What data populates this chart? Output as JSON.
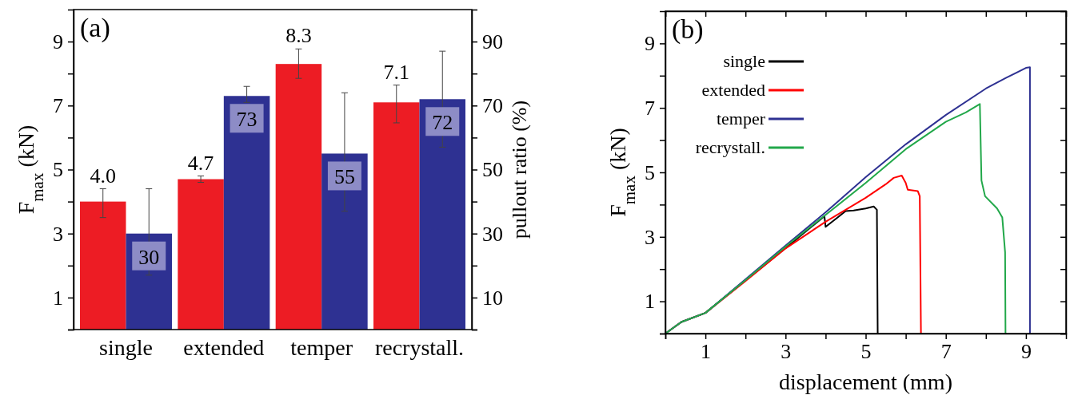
{
  "chart_data": [
    {
      "type": "bar",
      "categories": [
        "single",
        "extended",
        "temper",
        "recrystall."
      ],
      "ylabel": "F$_{max}$ (kN)",
      "y2label": "pullout ratio (%)",
      "annotations": [
        "(a)"
      ],
      "ylim": [
        0,
        10
      ],
      "yticks": [
        {
          "value": 0,
          "label": null
        },
        1,
        {
          "value": 2,
          "label": null
        },
        3,
        {
          "value": 4,
          "label": null
        },
        5,
        {
          "value": 6,
          "label": null
        },
        7,
        {
          "value": 8,
          "label": null
        },
        9
      ],
      "y2lim": [
        0,
        100
      ],
      "y2ticks": [
        {
          "value": 0,
          "label": null
        },
        10,
        {
          "value": 20,
          "label": null
        },
        30,
        {
          "value": 40,
          "label": null
        },
        50,
        {
          "value": 60,
          "label": null
        },
        70,
        {
          "value": 80,
          "label": null
        },
        90
      ],
      "series": [
        {
          "color": "#ed1c24",
          "values": [
            4.0,
            4.7,
            8.3,
            7.1
          ],
          "value_labels": [
            "4.0",
            "4.7",
            "8.3",
            "7.1"
          ],
          "errors": [
            [
              3.5,
              4.4
            ],
            [
              4.6,
              4.8
            ],
            [
              7.85,
              8.77
            ],
            [
              6.46,
              7.64
            ]
          ]
        },
        {
          "color": "#2e3192",
          "axis": "y2",
          "values": [
            30,
            73,
            55,
            72
          ],
          "value_labels": [
            "30",
            "73",
            "55",
            "72"
          ],
          "errors": [
            [
              17,
              44
            ],
            [
              71,
              76
            ],
            [
              37,
              74
            ],
            [
              57,
              87
            ]
          ]
        }
      ]
    },
    {
      "type": "line",
      "xlabel": "displacement (mm)",
      "ylabel": "F$_{max}$ (kN)",
      "annotations": [
        "(b)"
      ],
      "legend": "top left",
      "line_style": "solid",
      "xlim": [
        0,
        10
      ],
      "xticks": [
        {
          "value": 0,
          "label": null
        },
        1,
        {
          "value": 2,
          "label": null
        },
        3,
        {
          "value": 4,
          "label": null
        },
        5,
        {
          "value": 6,
          "label": null
        },
        7,
        {
          "value": 8,
          "label": null
        },
        9
      ],
      "ylim": [
        0,
        10
      ],
      "yticks": [
        {
          "value": 0,
          "label": null
        },
        1,
        {
          "value": 2,
          "label": null
        },
        3,
        {
          "value": 4,
          "label": null
        },
        5,
        {
          "value": 6,
          "label": null
        },
        7,
        {
          "value": 8,
          "label": null
        },
        9
      ],
      "series": [
        {
          "name": "single",
          "color": "#000000",
          "x": [
            0,
            0.4,
            1,
            2,
            3,
            3.97,
            4.0,
            4.3,
            4.5,
            4.7,
            5.0,
            5.2,
            5.28,
            5.3
          ],
          "values": [
            0,
            0.36,
            0.64,
            1.65,
            2.65,
            3.64,
            3.31,
            3.6,
            3.8,
            3.82,
            3.88,
            3.94,
            3.84,
            0
          ]
        },
        {
          "name": "extended",
          "color": "#ff0000",
          "x": [
            0,
            0.4,
            1,
            2,
            3,
            4,
            5,
            5.5,
            5.7,
            5.9,
            6.0,
            6.05,
            6.3,
            6.35,
            6.38
          ],
          "values": [
            0,
            0.36,
            0.64,
            1.63,
            2.64,
            3.47,
            4.21,
            4.63,
            4.83,
            4.9,
            4.67,
            4.46,
            4.42,
            4.26,
            0
          ]
        },
        {
          "name": "temper",
          "color": "#2e3192",
          "x": [
            0,
            0.4,
            1,
            2,
            3,
            4,
            5,
            6,
            7,
            8,
            8.5,
            9,
            9.1,
            9.1
          ],
          "values": [
            0,
            0.36,
            0.64,
            1.68,
            2.73,
            3.76,
            4.85,
            5.87,
            6.78,
            7.6,
            7.93,
            8.24,
            8.26,
            0
          ]
        },
        {
          "name": "recrystall.",
          "color": "#22a84a",
          "x": [
            0,
            0.4,
            1,
            2,
            3,
            4,
            5,
            6,
            7,
            7.5,
            7.85,
            7.89,
            7.98,
            8.28,
            8.41,
            8.48,
            8.49
          ],
          "values": [
            0,
            0.36,
            0.64,
            1.66,
            2.7,
            3.68,
            4.67,
            5.72,
            6.57,
            6.86,
            7.12,
            4.75,
            4.26,
            3.88,
            3.6,
            2.52,
            0
          ]
        }
      ]
    }
  ]
}
